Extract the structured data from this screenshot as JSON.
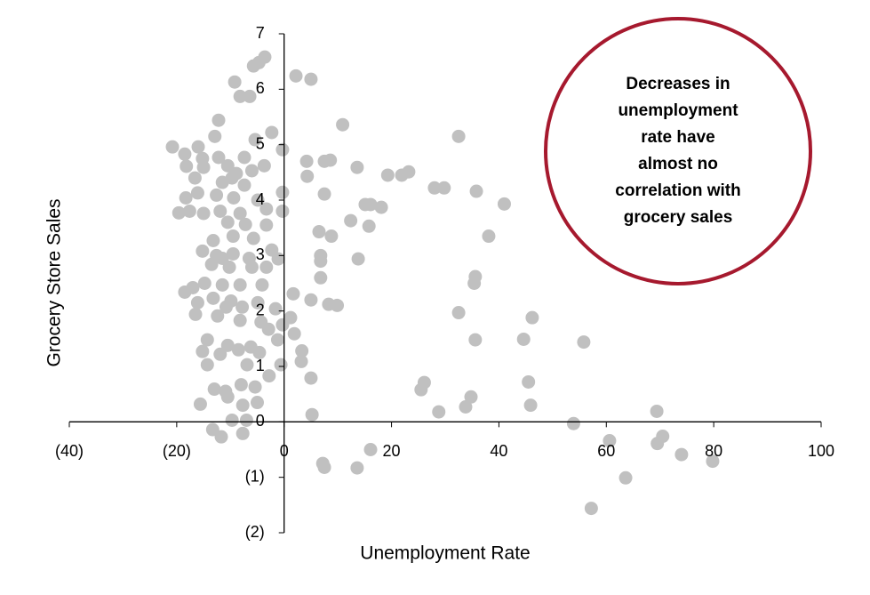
{
  "chart_data": {
    "type": "scatter",
    "x_label": "Unemployment Rate",
    "y_label": "Grocery Store Sales",
    "annotation": [
      "Decreases in",
      "unemployment",
      "rate have",
      "almost no",
      "correlation with",
      "grocery sales"
    ],
    "color": "#c0c0c0",
    "annotation_color": "#a6192e",
    "xlim": [
      -40,
      100
    ],
    "ylim": [
      -2,
      7
    ],
    "xticks": [
      {
        "value": -40,
        "label": "(40)"
      },
      {
        "value": -20,
        "label": "(20)"
      },
      0,
      20,
      40,
      60,
      80,
      100
    ],
    "yticks": [
      {
        "value": -2,
        "label": "(2)"
      },
      {
        "value": -1,
        "label": "(1)"
      },
      0,
      1,
      2,
      3,
      4,
      5,
      6,
      7
    ],
    "x": [
      2.2,
      5.0,
      10.9,
      32.5,
      4.2,
      7.5,
      8.6,
      13.6,
      4.3,
      19.3,
      21.9,
      23.2,
      28.0,
      29.8,
      35.8,
      7.5,
      15.1,
      16.1,
      18.1,
      41.0,
      12.4,
      15.8,
      6.5,
      8.8,
      38.1,
      6.8,
      6.8,
      13.8,
      6.8,
      35.6,
      35.4,
      5.0,
      8.3,
      9.9,
      32.5,
      46.2,
      35.6,
      44.6,
      55.8,
      3.3,
      3.2,
      5.0,
      45.5,
      26.1,
      25.5,
      34.8,
      33.8,
      45.9,
      28.8,
      5.2,
      69.4,
      53.9,
      60.6,
      70.5,
      69.5,
      74.0,
      79.8,
      16.1,
      7.2,
      7.5,
      13.6,
      63.6,
      57.2,
      -3.6,
      -4.7,
      -5.7,
      -9.2,
      -8.2,
      -6.4,
      -12.2,
      -12.9,
      -5.4,
      -2.3,
      -0.3,
      -20.8,
      -16.0,
      -18.5,
      -15.2,
      -12.2,
      -7.4,
      -18.2,
      -15.0,
      -10.5,
      -3.7,
      -8.9,
      -6.0,
      -16.6,
      -11.5,
      -9.7,
      -7.4,
      -0.3,
      -16.1,
      -18.3,
      -12.6,
      -9.4,
      -4.9,
      -19.6,
      -17.6,
      -15.0,
      -11.9,
      -8.2,
      -3.3,
      -0.3,
      -10.5,
      -7.2,
      -3.3,
      -13.2,
      -9.5,
      -5.7,
      -15.2,
      -12.6,
      -9.5,
      -6.5,
      -2.3,
      -1.1,
      -13.5,
      -10.2,
      -3.3,
      -14.8,
      -18.5,
      -17.0,
      -11.5,
      -8.2,
      -4.1,
      -16.1,
      -13.2,
      -9.9,
      -4.9,
      -1.6,
      -16.5,
      -12.4,
      -8.2,
      -4.3,
      1.7,
      1.2,
      -0.3,
      1.9,
      -1.2,
      -14.3,
      -10.5,
      -6.2,
      -15.2,
      -11.9,
      -4.6,
      -14.3,
      -6.9,
      -0.6,
      -2.8,
      -8.0,
      -5.4,
      -13.0,
      -10.9,
      -10.5,
      -5.0,
      -7.7,
      -15.6,
      -9.7,
      -7.0,
      -13.3,
      -11.7,
      -7.7,
      -8.5,
      -2.9,
      -6.0,
      -11.5,
      -10.8,
      -7.8
    ],
    "values": [
      6.24,
      6.18,
      5.36,
      5.15,
      4.7,
      4.7,
      4.72,
      4.59,
      4.43,
      4.45,
      4.45,
      4.51,
      4.22,
      4.22,
      4.16,
      4.11,
      3.92,
      3.92,
      3.87,
      3.93,
      3.63,
      3.53,
      3.43,
      3.35,
      3.35,
      3.0,
      2.9,
      2.94,
      2.6,
      2.62,
      2.5,
      2.2,
      2.12,
      2.1,
      1.97,
      1.88,
      1.48,
      1.49,
      1.44,
      1.28,
      1.09,
      0.79,
      0.72,
      0.71,
      0.58,
      0.45,
      0.27,
      0.3,
      0.18,
      0.13,
      0.19,
      -0.03,
      -0.34,
      -0.26,
      -0.39,
      -0.59,
      -0.71,
      -0.5,
      -0.75,
      -0.82,
      -0.83,
      -1.01,
      -1.56,
      6.58,
      6.48,
      6.42,
      6.13,
      5.87,
      5.87,
      5.44,
      5.15,
      5.09,
      5.22,
      4.91,
      4.96,
      4.96,
      4.83,
      4.75,
      4.77,
      4.77,
      4.61,
      4.59,
      4.62,
      4.62,
      4.48,
      4.53,
      4.4,
      4.32,
      4.4,
      4.27,
      4.14,
      4.13,
      4.04,
      4.09,
      4.04,
      4.0,
      3.77,
      3.8,
      3.76,
      3.8,
      3.76,
      3.84,
      3.8,
      3.6,
      3.56,
      3.55,
      3.27,
      3.35,
      3.31,
      3.08,
      3.0,
      3.03,
      2.95,
      3.1,
      2.94,
      2.84,
      2.79,
      2.79,
      2.5,
      2.34,
      2.42,
      2.47,
      2.47,
      2.47,
      2.15,
      2.23,
      2.18,
      2.15,
      2.04,
      1.94,
      1.91,
      1.83,
      1.8,
      2.31,
      1.88,
      1.75,
      1.59,
      1.48,
      1.48,
      1.38,
      1.35,
      1.27,
      1.22,
      1.25,
      1.03,
      1.03,
      1.03,
      0.83,
      0.67,
      0.63,
      0.59,
      0.55,
      0.45,
      0.35,
      0.3,
      0.32,
      0.03,
      0.03,
      -0.14,
      -0.27,
      -0.21,
      1.3,
      1.67,
      2.79,
      2.95,
      2.07,
      2.07
    ]
  }
}
